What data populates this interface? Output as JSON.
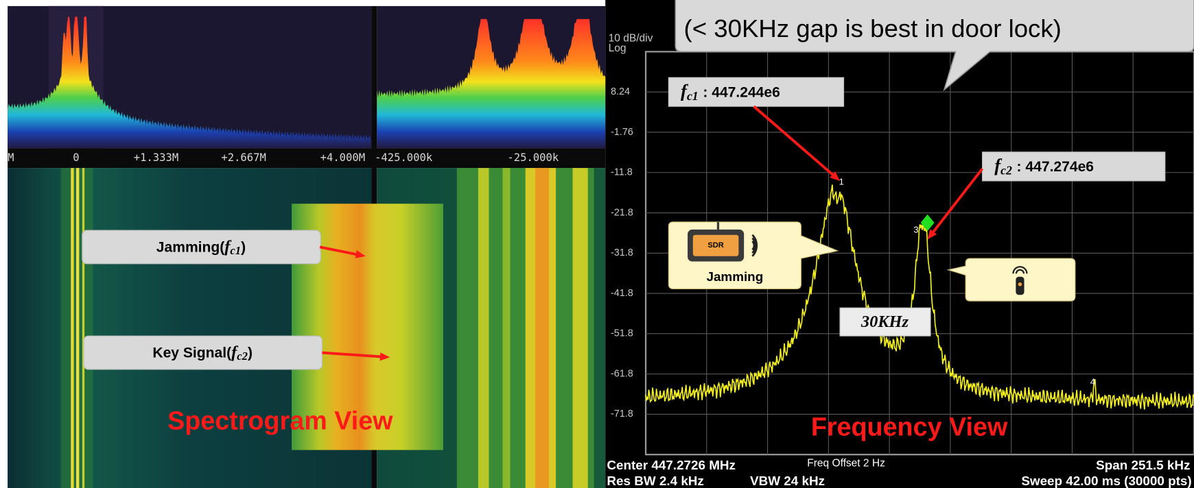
{
  "spectrogram": {
    "top_axis_labels": [
      "M",
      "0",
      "+1.333M",
      "+2.667M",
      "+4.000M",
      "-425.000k",
      "-25.000k"
    ],
    "callouts": [
      {
        "parts": [
          "Jamming(",
          "f",
          "c1",
          ")"
        ]
      },
      {
        "parts": [
          "Key Signal(",
          "f",
          "c2",
          ")"
        ]
      }
    ],
    "view_label": "Spectrogram View"
  },
  "analyzer": {
    "scale": "10 dB/div",
    "scale_type": "Log",
    "y_labels": [
      "8.24",
      "-1.76",
      "-11.8",
      "-21.8",
      "-31.8",
      "-41.8",
      "-51.8",
      "-61.8",
      "-71.8"
    ],
    "markers": [
      "1",
      "3",
      "4"
    ],
    "note": "(< 30KHz gap is best in door lock)",
    "carriers": [
      {
        "symbol": "f",
        "subscript": "c1",
        "value": ": 447.244e6"
      },
      {
        "symbol": "f",
        "subscript": "c2",
        "value": ": 447.274e6"
      }
    ],
    "jammer": {
      "chip": "SDR",
      "label": "Jamming"
    },
    "gap": "30KHz",
    "view_label": "Frequency View",
    "status": {
      "center": "Center 447.2726 MHz",
      "offset": "Freq Offset 2 Hz",
      "span": "Span 251.5 kHz",
      "res_bw": "Res BW 2.4 kHz",
      "vbw": "VBW 24 kHz",
      "sweep": "Sweep  42.00 ms (30000 pts)"
    }
  }
}
